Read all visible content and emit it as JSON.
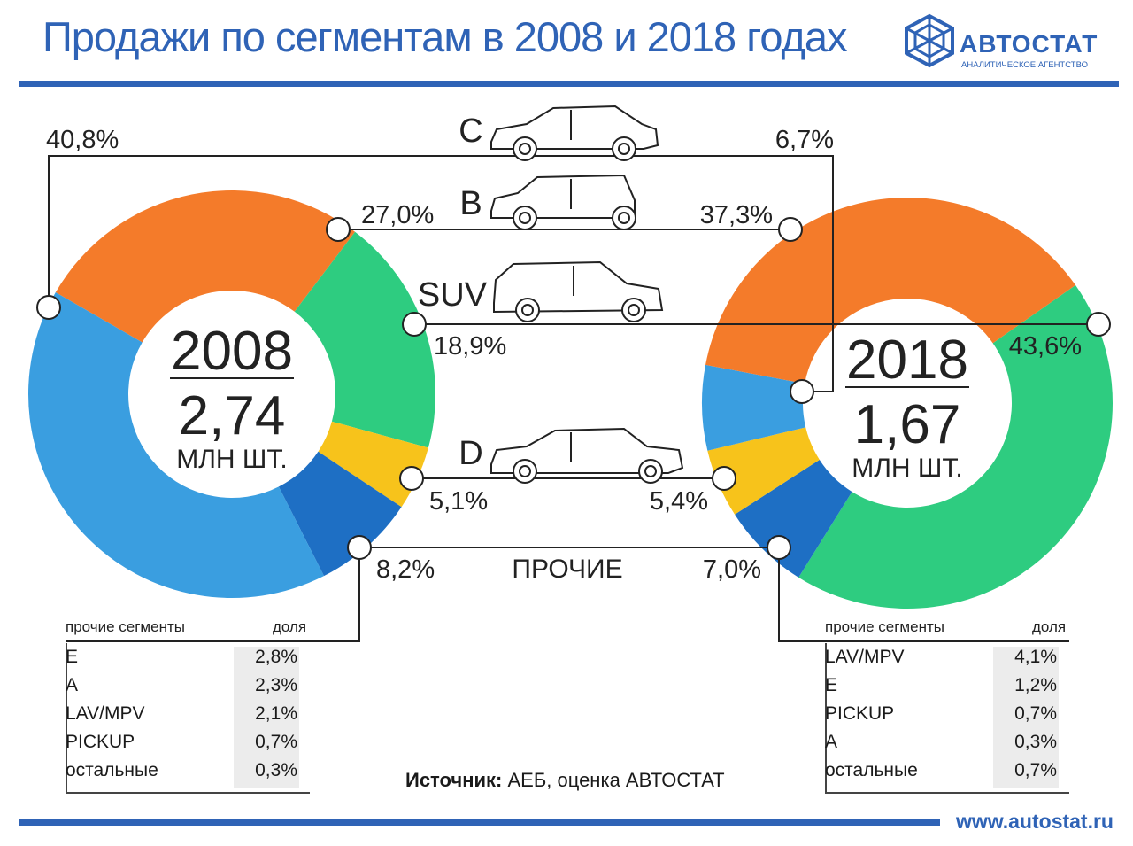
{
  "title": "Продажи по сегментам в 2008 и 2018 годах",
  "logo": {
    "name": "АВТОСТАТ",
    "subtitle": "АНАЛИТИЧЕСКОЕ АГЕНТСТВО"
  },
  "url": "www.autostat.ru",
  "source": {
    "label": "Источник:",
    "text": " АЕБ, оценка АВТОСТАТ"
  },
  "colors": {
    "C": "#3a9ee0",
    "B": "#f47b2a",
    "SUV": "#2ecc80",
    "D": "#f7c31b",
    "other": "#1e6fc4",
    "accent": "#2f63b6"
  },
  "chart_data": [
    {
      "type": "pie",
      "year_label": "2008",
      "total_label": "2,74",
      "unit_label": "млн шт.",
      "categories": [
        "C",
        "B",
        "SUV",
        "D",
        "ПРОЧИЕ"
      ],
      "values": [
        40.8,
        27.0,
        18.9,
        5.1,
        8.2
      ],
      "value_labels": [
        "40,8%",
        "27,0%",
        "18,9%",
        "5,1%",
        "8,2%"
      ]
    },
    {
      "type": "pie",
      "year_label": "2018",
      "total_label": "1,67",
      "unit_label": "млн шт.",
      "categories": [
        "C",
        "B",
        "SUV",
        "D",
        "ПРОЧИЕ"
      ],
      "values": [
        6.7,
        37.3,
        43.6,
        5.4,
        7.0
      ],
      "value_labels": [
        "6,7%",
        "37,3%",
        "43,6%",
        "5,4%",
        "7,0%"
      ]
    }
  ],
  "segment_labels": [
    "C",
    "B",
    "SUV",
    "D",
    "ПРОЧИЕ"
  ],
  "table_2008": {
    "header_name": "прочие сегменты",
    "header_value": "доля",
    "rows": [
      {
        "name": "E",
        "value": "2,8%"
      },
      {
        "name": "A",
        "value": "2,3%"
      },
      {
        "name": "LAV/MPV",
        "value": "2,1%"
      },
      {
        "name": "PICKUP",
        "value": "0,7%"
      },
      {
        "name": "остальные",
        "value": "0,3%"
      }
    ]
  },
  "table_2018": {
    "header_name": "прочие сегменты",
    "header_value": "доля",
    "rows": [
      {
        "name": "LAV/MPV",
        "value": "4,1%"
      },
      {
        "name": "E",
        "value": "1,2%"
      },
      {
        "name": "PICKUP",
        "value": "0,7%"
      },
      {
        "name": "A",
        "value": "0,3%"
      },
      {
        "name": "остальные",
        "value": "0,7%"
      }
    ]
  }
}
